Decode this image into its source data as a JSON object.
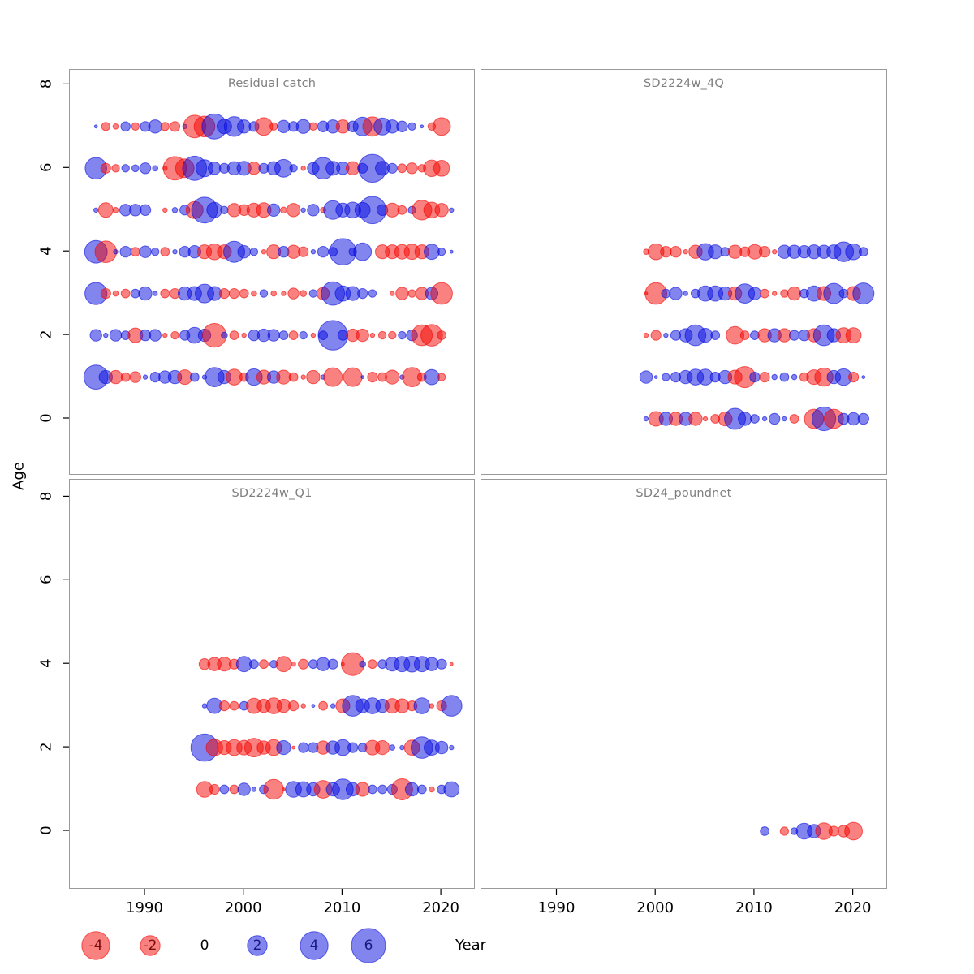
{
  "figure": {
    "xlabel": "Year",
    "ylabel": "Age"
  },
  "chart_data": {
    "type": "bubble",
    "description": "Log residuals by age and year for catch and survey fleets; circle area ~ |residual|, red = negative, blue = positive",
    "x_ticks": [
      "1990",
      "2000",
      "2010",
      "2020"
    ],
    "x_tick_years": [
      1990,
      2000,
      2010,
      2020
    ],
    "y_ticks": [
      "0",
      "2",
      "4",
      "6",
      "8"
    ],
    "y_tick_ages": [
      0,
      2,
      4,
      6,
      8
    ],
    "xlabel": "Year",
    "ylabel": "Age",
    "xlim": [
      1983.5,
      2023
    ],
    "ylim": [
      -1.3,
      8.4
    ],
    "colors": {
      "negative": "#F30300",
      "positive": "#060BDD",
      "fill_opacity": 0.5
    },
    "legend": {
      "values": [
        -4,
        -2,
        0,
        2,
        4,
        6
      ],
      "labels": [
        "-4",
        "-2",
        "0",
        "2",
        "4",
        "6"
      ]
    },
    "panels": [
      {
        "title": "Residual catch",
        "grid": [
          0,
          0
        ],
        "start_year": 1985,
        "series": [
          {
            "age": 1,
            "values": [
              3.0,
              0.9,
              -0.9,
              -0.4,
              -0.6,
              0.1,
              0.5,
              0.8,
              0.9,
              -1.1,
              0.4,
              0.1,
              1.9,
              0.9,
              -1.3,
              -0.4,
              1.4,
              -1.0,
              0.8,
              -1.0,
              -0.4,
              -0.1,
              -0.9,
              0.1,
              -1.8,
              null,
              -1.8,
              0.05,
              -0.5,
              -0.4,
              -1.0,
              0.1,
              -1.9,
              -0.4,
              1.2,
              -0.3,
              null
            ]
          },
          {
            "age": 2,
            "values": [
              0.7,
              0.1,
              0.7,
              0.4,
              -1.1,
              0.6,
              0.7,
              -0.1,
              -0.3,
              0.5,
              1.3,
              0.8,
              -2.9,
              0.2,
              -0.4,
              -0.1,
              0.6,
              0.8,
              0.7,
              0.4,
              -0.4,
              0.3,
              -0.1,
              0.4,
              4.5,
              0.5,
              -0.8,
              -0.8,
              -0.1,
              -0.3,
              -0.3,
              0.3,
              0.6,
              -2.2,
              -2.4,
              -0.4,
              null
            ]
          },
          {
            "age": 3,
            "values": [
              2.5,
              -0.5,
              -0.15,
              -0.4,
              0.4,
              0.9,
              0.1,
              -0.4,
              -0.5,
              0.9,
              1.0,
              1.8,
              1.0,
              -0.5,
              -0.5,
              -0.4,
              -0.15,
              0.3,
              -0.15,
              -0.1,
              -0.6,
              -0.2,
              0.3,
              -0.8,
              2.8,
              1.2,
              1.0,
              0.5,
              0.3,
              null,
              -0.1,
              -0.8,
              -0.3,
              -0.8,
              0.8,
              -2.4,
              null
            ]
          },
          {
            "age": 4,
            "values": [
              2.6,
              -2.4,
              0.1,
              0.6,
              -0.4,
              0.7,
              0.3,
              -0.4,
              0.1,
              0.6,
              0.8,
              -1.0,
              -1.3,
              -1.0,
              2.3,
              0.8,
              0.3,
              -0.1,
              -1.0,
              0.6,
              -0.9,
              -0.5,
              0.1,
              0.6,
              0.4,
              3.6,
              0.3,
              1.6,
              null,
              -1.0,
              -1.0,
              -1.1,
              -1.2,
              -1.0,
              1.2,
              0.3,
              0.05
            ]
          },
          {
            "age": 5,
            "values": [
              0.1,
              -1.1,
              -0.15,
              0.7,
              0.7,
              0.6,
              null,
              -0.1,
              0.15,
              0.5,
              -1.5,
              3.4,
              1.2,
              0.3,
              -0.9,
              -0.6,
              -1.0,
              -1.1,
              0.8,
              -0.2,
              -0.9,
              0.1,
              0.7,
              -0.15,
              1.8,
              1.0,
              1.3,
              1.2,
              3.8,
              0.6,
              -1.0,
              -0.4,
              0.3,
              -2.0,
              -1.3,
              -0.9,
              0.1
            ]
          },
          {
            "age": 6,
            "values": [
              2.4,
              -0.5,
              -0.3,
              0.3,
              0.25,
              0.6,
              0.15,
              -0.1,
              -2.8,
              -1.8,
              3.0,
              1.5,
              0.8,
              0.5,
              0.9,
              1.0,
              -0.8,
              0.5,
              0.9,
              1.6,
              0.3,
              -0.1,
              0.7,
              2.4,
              1.0,
              0.8,
              -0.9,
              0.5,
              4.0,
              1.0,
              0.5,
              -0.4,
              -0.6,
              -0.3,
              -1.4,
              -1.3,
              null
            ]
          },
          {
            "age": 7,
            "values": [
              0.05,
              -0.35,
              -0.15,
              0.45,
              -0.3,
              0.5,
              0.9,
              -0.35,
              -0.5,
              0.1,
              -2.6,
              -2.2,
              3.2,
              1.1,
              2.0,
              0.9,
              0.5,
              -1.6,
              -0.3,
              0.8,
              0.5,
              1.0,
              -0.3,
              0.6,
              0.9,
              -0.9,
              0.6,
              1.8,
              -1.9,
              1.5,
              0.9,
              0.6,
              0.3,
              0.05,
              -0.3,
              -1.6,
              null
            ]
          }
        ]
      },
      {
        "title": "SD2224w_4Q",
        "grid": [
          0,
          1
        ],
        "start_year": 1999,
        "series": [
          {
            "age": 0,
            "values": [
              0.1,
              -1.1,
              0.9,
              -0.9,
              0.9,
              -0.9,
              -0.1,
              -0.4,
              -1.0,
              2.3,
              0.9,
              0.4,
              0.1,
              0.6,
              0.1,
              -0.4,
              null,
              -1.9,
              2.9,
              -1.9,
              0.6,
              0.8,
              0.6
            ]
          },
          {
            "age": 1,
            "values": [
              0.8,
              0.05,
              0.3,
              0.5,
              0.9,
              1.3,
              1.3,
              0.5,
              0.9,
              -1.0,
              -2.3,
              0.5,
              -0.5,
              0.15,
              0.4,
              0.15,
              -0.4,
              -1.1,
              -1.7,
              0.9,
              1.4,
              -0.5,
              0.05
            ]
          },
          {
            "age": 2,
            "values": [
              -0.1,
              -0.5,
              0.1,
              0.5,
              0.9,
              2.2,
              1.0,
              0.4,
              null,
              -1.6,
              -0.4,
              0.4,
              -0.9,
              0.9,
              -0.9,
              0.5,
              0.6,
              -0.9,
              2.2,
              0.9,
              -1.2,
              -1.2,
              null
            ]
          },
          {
            "age": 3,
            "values": [
              -0.05,
              -2.4,
              0.4,
              0.8,
              0.1,
              0.4,
              1.2,
              1.2,
              0.9,
              -0.9,
              1.9,
              0.8,
              -0.4,
              -0.1,
              -0.3,
              -0.9,
              0.4,
              1.2,
              -1.0,
              2.1,
              0.4,
              -1.0,
              2.3
            ]
          },
          {
            "age": 4,
            "values": [
              -0.15,
              -1.3,
              -0.6,
              -0.6,
              -0.1,
              -0.9,
              1.4,
              1.0,
              0.4,
              -0.9,
              -0.5,
              -1.1,
              -0.6,
              -0.1,
              0.9,
              0.9,
              0.8,
              1.0,
              0.9,
              1.0,
              2.0,
              1.3,
              0.4
            ]
          }
        ]
      },
      {
        "title": "SD2224w_Q1",
        "grid": [
          1,
          0
        ],
        "start_year": 1996,
        "series": [
          {
            "age": 1,
            "values": [
              -1.3,
              -0.5,
              0.4,
              -0.4,
              0.8,
              0.1,
              0.4,
              -2.0,
              -0.05,
              1.3,
              1.2,
              0.9,
              -1.6,
              0.9,
              2.2,
              0.9,
              -1.0,
              0.4,
              0.4,
              0.5,
              -2.3,
              0.9,
              0.4,
              -0.15,
              0.4,
              1.2
            ]
          },
          {
            "age": 2,
            "values": [
              3.8,
              -1.4,
              -1.0,
              -1.3,
              -1.1,
              -1.8,
              -0.9,
              -1.3,
              1.0,
              -0.05,
              0.5,
              0.5,
              -0.9,
              0.9,
              1.3,
              0.5,
              0.4,
              -1.1,
              -1.0,
              0.15,
              0.1,
              -1.2,
              2.4,
              1.2,
              0.8,
              0.1
            ]
          },
          {
            "age": 3,
            "values": [
              0.1,
              1.2,
              -0.5,
              -0.4,
              0.4,
              -1.2,
              -0.9,
              -1.3,
              -0.9,
              -0.5,
              -0.1,
              0.05,
              -0.4,
              0.1,
              -1.0,
              2.2,
              1.0,
              1.3,
              0.9,
              -1.1,
              -1.0,
              -0.5,
              1.3,
              -0.1,
              -0.5,
              2.2
            ]
          },
          {
            "age": 4,
            "values": [
              -0.6,
              -0.9,
              -1.0,
              -0.5,
              1.2,
              0.4,
              -0.4,
              0.3,
              -1.2,
              -0.1,
              -0.5,
              0.4,
              0.9,
              0.5,
              -0.05,
              -2.7,
              0.2,
              -0.4,
              0.4,
              1.0,
              1.2,
              1.3,
              1.2,
              0.9,
              0.5,
              -0.05
            ]
          }
        ]
      },
      {
        "title": "SD24_poundnet",
        "grid": [
          1,
          1
        ],
        "start_year": 2011,
        "series": [
          {
            "age": 0,
            "values": [
              0.4,
              null,
              -0.35,
              0.25,
              1.3,
              0.9,
              -1.4,
              -0.5,
              -0.7,
              -1.6
            ]
          }
        ]
      }
    ]
  }
}
